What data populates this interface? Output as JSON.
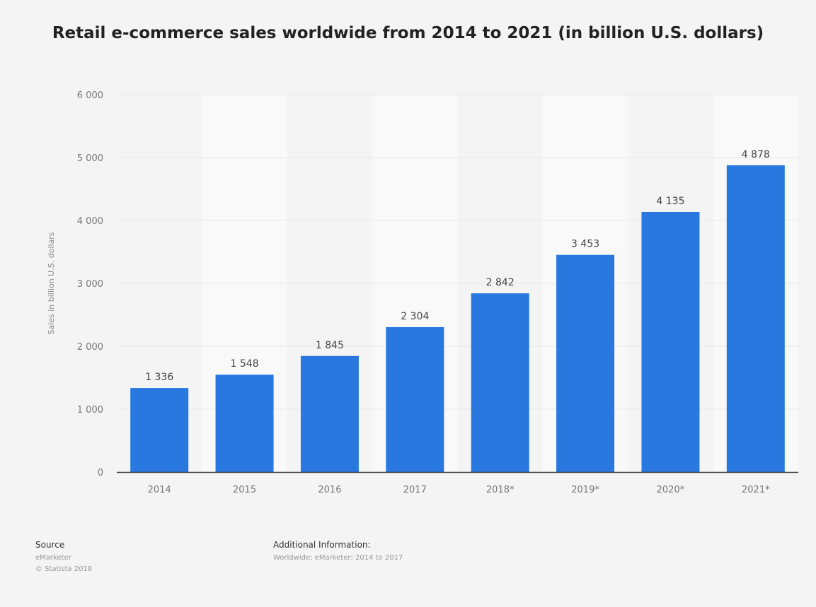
{
  "chart_data": {
    "type": "bar",
    "title": "Retail e-commerce sales worldwide from 2014 to 2021 (in billion U.S. dollars)",
    "ylabel": "Sales in billion U.S. dollars",
    "xlabel": "",
    "categories": [
      "2014",
      "2015",
      "2016",
      "2017",
      "2018*",
      "2019*",
      "2020*",
      "2021*"
    ],
    "values": [
      1336,
      1548,
      1845,
      2304,
      2842,
      3453,
      4135,
      4878
    ],
    "value_labels": [
      "1 336",
      "1 548",
      "1 845",
      "2 304",
      "2 842",
      "3 453",
      "4 135",
      "4 878"
    ],
    "ylim": [
      0,
      6000
    ],
    "yticks": [
      0,
      1000,
      2000,
      3000,
      4000,
      5000,
      6000
    ],
    "ytick_labels": [
      "0",
      "1 000",
      "2 000",
      "3 000",
      "4 000",
      "5 000",
      "6 000"
    ],
    "grid": true,
    "legend": "none",
    "bar_color": "#2878df"
  },
  "footer": {
    "source_heading": "Source",
    "source_lines": [
      "eMarketer",
      "© Statista 2018"
    ],
    "info_heading": "Additional Information:",
    "info_lines": [
      "Worldwide; eMarketer; 2014 to 2017"
    ]
  }
}
